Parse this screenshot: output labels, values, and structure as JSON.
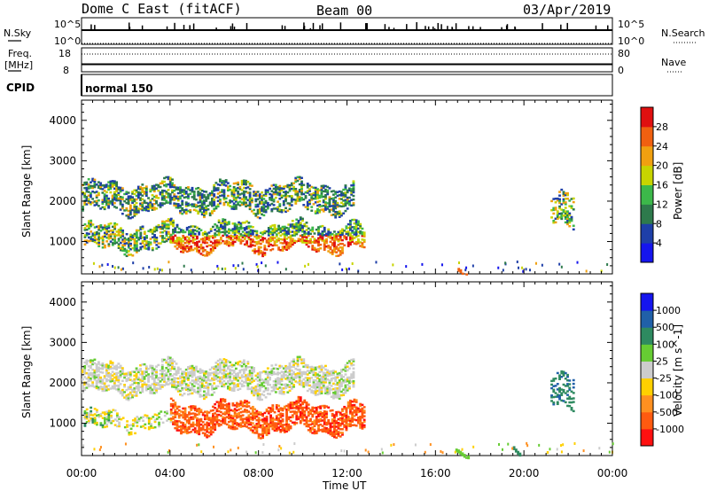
{
  "header": {
    "station": "Dome C East (fitACF)",
    "beam": "Beam 00",
    "date": "03/Apr/2019"
  },
  "top_panels": {
    "nsky_label": "N.Sky",
    "nsky_top_tick": "10^5",
    "nsky_bottom_tick": "10^0",
    "nsearch_label": "N.Search",
    "nsearch_top_tick": "10^5",
    "nsearch_bottom_tick": "10^0",
    "freq_label_line1": "Freq.",
    "freq_label_line2": "[MHz]",
    "freq_top_tick": "18",
    "freq_bottom_tick": "8",
    "nave_label": "Nave",
    "nave_top_tick": "80",
    "nave_bottom_tick": "0",
    "cpid_label": "CPID",
    "cpid_value": "normal 150"
  },
  "colors": {
    "power": [
      "#1515ee",
      "#1e3fa8",
      "#2e7a4c",
      "#3cb84a",
      "#c7d400",
      "#f0a010",
      "#f06010",
      "#e01010"
    ],
    "velocity": [
      "#ff1010",
      "#ff5a10",
      "#ff9020",
      "#ffd000",
      "#cccccc",
      "#66cc33",
      "#2e8a60",
      "#2060a8",
      "#1515ee"
    ]
  },
  "chart_data": [
    {
      "type": "heatmap",
      "name": "power",
      "ylabel": "Slant Range [km]",
      "xlabel": "Time UT",
      "ylim": [
        200,
        4500
      ],
      "xlim_hours": [
        0,
        24
      ],
      "yticks": [
        "1000",
        "2000",
        "3000",
        "4000"
      ],
      "xticks": [
        "00:00",
        "04:00",
        "08:00",
        "12:00",
        "16:00",
        "20:00",
        "00:00"
      ],
      "colorbar_label": "Power [dB]",
      "colorbar_ticks": [
        "4",
        "8",
        "12",
        "16",
        "20",
        "24",
        "28"
      ],
      "colorbar_range": [
        0,
        30
      ],
      "regions": [
        {
          "t0": 0.0,
          "t1": 12.3,
          "r0": 1700,
          "r1": 2450,
          "level": "mixed-green"
        },
        {
          "t0": 0.1,
          "t1": 12.8,
          "r0": 700,
          "r1": 1400,
          "level": "mixed-red"
        },
        {
          "t0": 21.2,
          "t1": 22.2,
          "r0": 1300,
          "r1": 2100,
          "level": "mixed-green"
        },
        {
          "t0": 17.0,
          "t1": 17.4,
          "r0": 300,
          "r1": 400,
          "level": "orange"
        }
      ]
    },
    {
      "type": "heatmap",
      "name": "velocity",
      "ylabel": "Slant Range [km]",
      "xlabel": "Time UT",
      "ylim": [
        200,
        4500
      ],
      "xlim_hours": [
        0,
        24
      ],
      "yticks": [
        "1000",
        "2000",
        "3000",
        "4000"
      ],
      "xticks": [
        "00:00",
        "04:00",
        "08:00",
        "12:00",
        "16:00",
        "20:00",
        "00:00"
      ],
      "colorbar_label": "Velocity [m s^-1]",
      "colorbar_ticks": [
        "1000",
        "500",
        "100",
        "25",
        "-25",
        "-100",
        "-500",
        "-1000"
      ],
      "regions": [
        {
          "t0": 0.0,
          "t1": 12.3,
          "r0": 1700,
          "r1": 2500,
          "value_class": "gray (-25 to 25)"
        },
        {
          "t0": 4.0,
          "t1": 12.8,
          "r0": 750,
          "r1": 1500,
          "value_class": "orange (-100 to -500)"
        },
        {
          "t0": 0.1,
          "t1": 1.2,
          "r0": 800,
          "r1": 1200,
          "value_class": "green (25 to 100)"
        },
        {
          "t0": 21.2,
          "t1": 22.2,
          "r0": 1300,
          "r1": 2100,
          "value_class": "blue (500 to 1000)"
        }
      ]
    }
  ]
}
